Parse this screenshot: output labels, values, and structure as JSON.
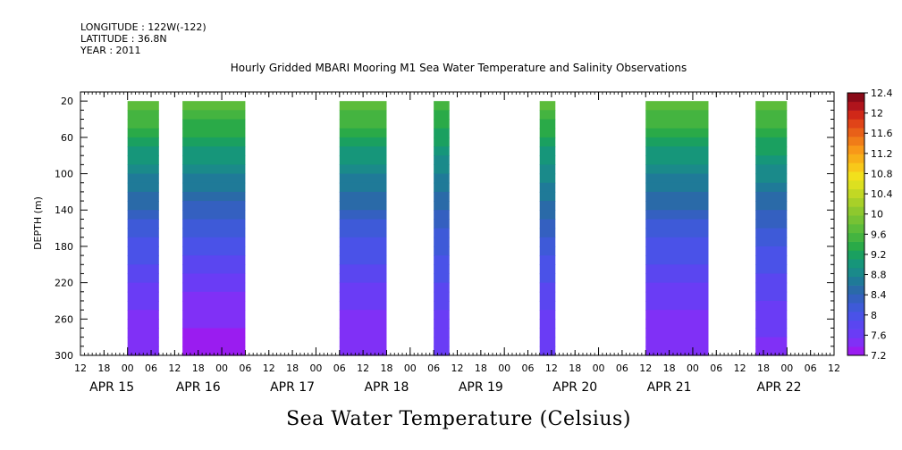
{
  "header": {
    "longitude": "LONGITUDE : 122W(-122)",
    "latitude": "LATITUDE : 36.8N",
    "year": "YEAR : 2011"
  },
  "chart_data": {
    "type": "heatmap",
    "title": "Hourly Gridded MBARI Mooring M1 Sea Water Temperature and Salinity Observations",
    "subtitle": "Sea Water Temperature (Celsius)",
    "ylabel": "DEPTH (m)",
    "xlabel": "",
    "y_reversed": true,
    "ylim": [
      300,
      10
    ],
    "y_ticks": [
      20,
      60,
      100,
      140,
      180,
      220,
      260,
      300
    ],
    "x_range_hours": [
      -12,
      180
    ],
    "x_tick_labels": [
      "12",
      "18",
      "00",
      "06",
      "12",
      "18",
      "00",
      "06",
      "12",
      "18",
      "00",
      "06",
      "12",
      "18",
      "00",
      "06",
      "12",
      "18",
      "00",
      "06",
      "12",
      "18",
      "00",
      "06",
      "12",
      "18",
      "00",
      "06",
      "12",
      "18",
      "00",
      "06",
      "12"
    ],
    "date_labels": [
      "APR 15",
      "APR 16",
      "APR 17",
      "APR 18",
      "APR 19",
      "APR 20",
      "APR 21",
      "APR 22"
    ],
    "colorbar": {
      "min": 7.2,
      "max": 12.4,
      "step": 0.2,
      "tick_labels": [
        "7.2",
        "7.6",
        "8",
        "8.4",
        "8.8",
        "9.2",
        "9.6",
        "10",
        "10.4",
        "10.8",
        "11.2",
        "11.6",
        "12",
        "12.4"
      ],
      "colors": [
        "#9a1cf0",
        "#8030f6",
        "#6a3cf5",
        "#5a46f0",
        "#4a52e8",
        "#3e5ad8",
        "#3460c0",
        "#2a6aa8",
        "#1f7a98",
        "#1a8a8a",
        "#16967a",
        "#1aa060",
        "#2aaa48",
        "#44b440",
        "#5cbc3a",
        "#76c234",
        "#8ec82e",
        "#a8d028",
        "#c2d824",
        "#dce020",
        "#f2e01c",
        "#f8c81a",
        "#f8b018",
        "#f89818",
        "#f07c18",
        "#e86018",
        "#e04418",
        "#d02818",
        "#b0141c",
        "#8a0a18"
      ]
    },
    "data_blocks": [
      {
        "start_hour": 0,
        "end_hour": 8,
        "surface_temp": 9.8,
        "bottom_temp": 7.4
      },
      {
        "start_hour": 14,
        "end_hour": 30,
        "surface_temp": 9.8,
        "bottom_temp": 7.3
      },
      {
        "start_hour": 54,
        "end_hour": 66,
        "surface_temp": 9.8,
        "bottom_temp": 7.4
      },
      {
        "start_hour": 78,
        "end_hour": 82,
        "surface_temp": 9.6,
        "bottom_temp": 7.6
      },
      {
        "start_hour": 105,
        "end_hour": 109,
        "surface_temp": 9.7,
        "bottom_temp": 7.6
      },
      {
        "start_hour": 132,
        "end_hour": 148,
        "surface_temp": 9.8,
        "bottom_temp": 7.4
      },
      {
        "start_hour": 160,
        "end_hour": 168,
        "surface_temp": 9.8,
        "bottom_temp": 7.5
      }
    ]
  }
}
